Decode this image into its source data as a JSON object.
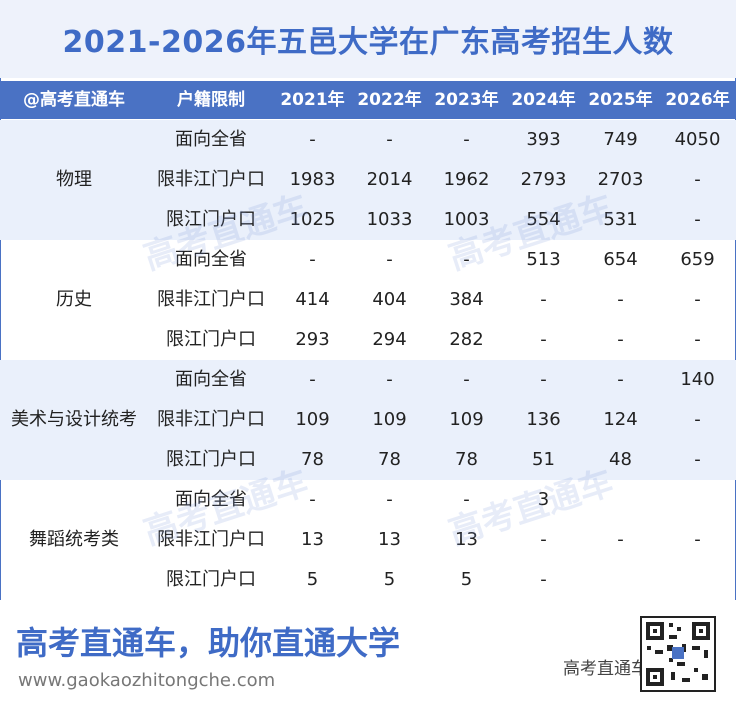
{
  "title": "2021-2026年五邑大学在广东高考招生人数",
  "header": [
    "@高考直通车",
    "户籍限制",
    "2021年",
    "2022年",
    "2023年",
    "2024年",
    "2025年",
    "2026年"
  ],
  "groups": [
    {
      "name": "物理",
      "rows": [
        {
          "restriction": "面向全省",
          "values": [
            "-",
            "-",
            "-",
            "393",
            "749",
            "4050"
          ]
        },
        {
          "restriction": "限非江门户口",
          "values": [
            "1983",
            "2014",
            "1962",
            "2793",
            "2703",
            "-"
          ]
        },
        {
          "restriction": "限江门户口",
          "values": [
            "1025",
            "1033",
            "1003",
            "554",
            "531",
            "-"
          ]
        }
      ]
    },
    {
      "name": "历史",
      "rows": [
        {
          "restriction": "面向全省",
          "values": [
            "-",
            "-",
            "-",
            "513",
            "654",
            "659"
          ]
        },
        {
          "restriction": "限非江门户口",
          "values": [
            "414",
            "404",
            "384",
            "-",
            "-",
            "-"
          ]
        },
        {
          "restriction": "限江门户口",
          "values": [
            "293",
            "294",
            "282",
            "-",
            "-",
            "-"
          ]
        }
      ]
    },
    {
      "name": "美术与设计统考",
      "rows": [
        {
          "restriction": "面向全省",
          "values": [
            "-",
            "-",
            "-",
            "-",
            "-",
            "140"
          ]
        },
        {
          "restriction": "限非江门户口",
          "values": [
            "109",
            "109",
            "109",
            "136",
            "124",
            "-"
          ]
        },
        {
          "restriction": "限江门户口",
          "values": [
            "78",
            "78",
            "78",
            "51",
            "48",
            "-"
          ]
        }
      ]
    },
    {
      "name": "舞蹈统考类",
      "rows": [
        {
          "restriction": "面向全省",
          "values": [
            "-",
            "-",
            "-",
            "3",
            "",
            ""
          ]
        },
        {
          "restriction": "限非江门户口",
          "values": [
            "13",
            "13",
            "13",
            "-",
            "-",
            "-"
          ]
        },
        {
          "restriction": "限江门户口",
          "values": [
            "5",
            "5",
            "5",
            "-",
            "",
            ""
          ]
        }
      ]
    }
  ],
  "watermark": "高考直通车",
  "footer": {
    "slogan": "高考直通车，助你直通大学",
    "website": "www.gaokaozhitongche.com",
    "brand": "高考直通车"
  },
  "colors": {
    "accent": "#4a72c4",
    "title": "#3f6bc6",
    "band": "#eaf0fb"
  }
}
